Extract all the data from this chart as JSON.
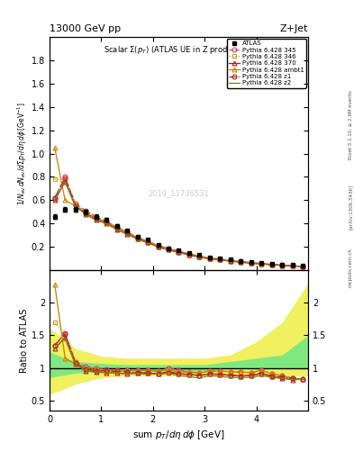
{
  "title_top": "13000 GeV pp",
  "title_right": "Z+Jet",
  "plot_title": "Scalar Σ(pₜ) (ATLAS UE in Z production)",
  "ylabel_main": "1/N_{ev} dN_{ev}/dsum p_T/dη dϕ [GeV^{-1}]",
  "ylabel_ratio": "Ratio to ATLAS",
  "xlabel": "sum p_T/dη dϕ [GeV]",
  "rivet_label": "Rivet 3.1.10, ≥ 2.9M events",
  "arxiv_label": "[arXiv:1306.3436]",
  "mcplots_label": "mcplots.cern.ch",
  "watermark": "2019_11736531",
  "xlim": [
    0,
    5.0
  ],
  "ylim_main": [
    0.0,
    2.0
  ],
  "ylim_ratio": [
    0.35,
    2.5
  ],
  "x_data": [
    0.1,
    0.3,
    0.5,
    0.7,
    0.9,
    1.1,
    1.3,
    1.5,
    1.7,
    1.9,
    2.1,
    2.3,
    2.5,
    2.7,
    2.9,
    3.1,
    3.3,
    3.5,
    3.7,
    3.9,
    4.1,
    4.3,
    4.5,
    4.7,
    4.9
  ],
  "atlas_y": [
    0.46,
    0.52,
    0.52,
    0.5,
    0.46,
    0.43,
    0.38,
    0.34,
    0.29,
    0.26,
    0.22,
    0.19,
    0.17,
    0.15,
    0.13,
    0.11,
    0.1,
    0.09,
    0.08,
    0.07,
    0.06,
    0.055,
    0.05,
    0.045,
    0.04
  ],
  "atlas_yerr": [
    0.02,
    0.02,
    0.02,
    0.02,
    0.02,
    0.015,
    0.015,
    0.012,
    0.01,
    0.01,
    0.008,
    0.007,
    0.006,
    0.005,
    0.005,
    0.004,
    0.004,
    0.003,
    0.003,
    0.003,
    0.002,
    0.002,
    0.002,
    0.002,
    0.002
  ],
  "py345_y": [
    0.62,
    0.8,
    0.57,
    0.51,
    0.46,
    0.42,
    0.37,
    0.33,
    0.28,
    0.25,
    0.21,
    0.19,
    0.165,
    0.14,
    0.12,
    0.105,
    0.095,
    0.085,
    0.075,
    0.065,
    0.058,
    0.05,
    0.044,
    0.038,
    0.033
  ],
  "py346_y": [
    0.78,
    0.78,
    0.57,
    0.5,
    0.45,
    0.41,
    0.36,
    0.32,
    0.27,
    0.24,
    0.21,
    0.185,
    0.16,
    0.14,
    0.12,
    0.105,
    0.09,
    0.08,
    0.07,
    0.062,
    0.055,
    0.048,
    0.043,
    0.038,
    0.033
  ],
  "py370_y": [
    0.6,
    0.76,
    0.55,
    0.48,
    0.43,
    0.4,
    0.35,
    0.31,
    0.27,
    0.24,
    0.2,
    0.18,
    0.155,
    0.135,
    0.115,
    0.1,
    0.09,
    0.08,
    0.07,
    0.062,
    0.055,
    0.048,
    0.042,
    0.037,
    0.033
  ],
  "pyambt1_y": [
    1.05,
    0.6,
    0.55,
    0.49,
    0.45,
    0.41,
    0.37,
    0.33,
    0.28,
    0.25,
    0.21,
    0.185,
    0.16,
    0.14,
    0.12,
    0.105,
    0.095,
    0.085,
    0.075,
    0.065,
    0.058,
    0.05,
    0.044,
    0.038,
    0.033
  ],
  "pyz1_y": [
    0.62,
    0.79,
    0.56,
    0.49,
    0.44,
    0.41,
    0.36,
    0.32,
    0.27,
    0.24,
    0.2,
    0.175,
    0.155,
    0.135,
    0.115,
    0.1,
    0.09,
    0.08,
    0.07,
    0.062,
    0.055,
    0.048,
    0.043,
    0.038,
    0.033
  ],
  "pyz2_y": [
    0.6,
    0.76,
    0.55,
    0.48,
    0.43,
    0.4,
    0.35,
    0.31,
    0.265,
    0.235,
    0.2,
    0.175,
    0.15,
    0.13,
    0.11,
    0.097,
    0.087,
    0.077,
    0.068,
    0.06,
    0.053,
    0.047,
    0.042,
    0.037,
    0.033
  ],
  "color_345": "#d04070",
  "color_346": "#c8a020",
  "color_370": "#b02020",
  "color_ambt1": "#d08000",
  "color_z1": "#b82020",
  "color_z2": "#808010",
  "bg_green": "#80e880",
  "bg_yellow": "#f0f060",
  "x_band": [
    0.0,
    0.2,
    0.5,
    1.0,
    1.5,
    2.0,
    2.5,
    3.0,
    3.5,
    4.0,
    4.5,
    5.0
  ],
  "green_lo": [
    0.85,
    0.88,
    0.92,
    0.95,
    0.95,
    0.95,
    0.95,
    0.95,
    1.0,
    1.0,
    1.0,
    1.0
  ],
  "green_hi": [
    1.25,
    1.18,
    1.1,
    1.07,
    1.05,
    1.05,
    1.05,
    1.05,
    1.1,
    1.15,
    1.2,
    1.5
  ],
  "yellow_lo": [
    0.6,
    0.65,
    0.75,
    0.85,
    0.88,
    0.88,
    0.88,
    0.88,
    0.88,
    0.88,
    0.88,
    0.88
  ],
  "yellow_hi": [
    1.6,
    1.5,
    1.3,
    1.18,
    1.15,
    1.15,
    1.15,
    1.15,
    1.2,
    1.4,
    1.7,
    2.3
  ]
}
